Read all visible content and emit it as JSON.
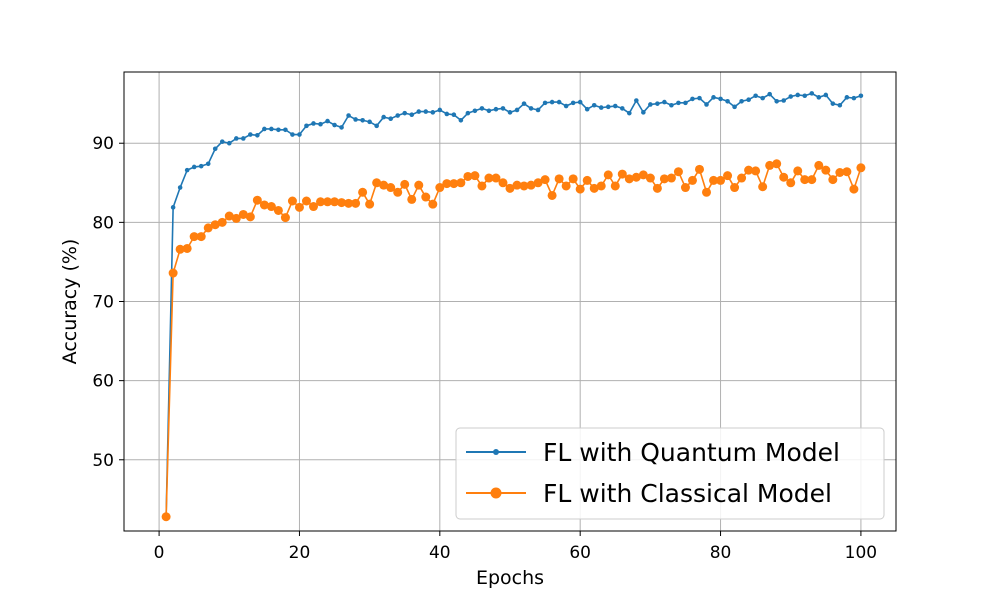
{
  "chart_data": {
    "type": "line",
    "xlabel": "Epochs",
    "ylabel": "Accuracy (%)",
    "xlim": [
      -5,
      105
    ],
    "ylim": [
      41,
      99
    ],
    "xticks": [
      0,
      20,
      40,
      60,
      80,
      100
    ],
    "yticks": [
      50,
      60,
      70,
      80,
      90
    ],
    "grid": true,
    "legend_position": "lower-right",
    "x": [
      1,
      2,
      3,
      4,
      5,
      6,
      7,
      8,
      9,
      10,
      11,
      12,
      13,
      14,
      15,
      16,
      17,
      18,
      19,
      20,
      21,
      22,
      23,
      24,
      25,
      26,
      27,
      28,
      29,
      30,
      31,
      32,
      33,
      34,
      35,
      36,
      37,
      38,
      39,
      40,
      41,
      42,
      43,
      44,
      45,
      46,
      47,
      48,
      49,
      50,
      51,
      52,
      53,
      54,
      55,
      56,
      57,
      58,
      59,
      60,
      61,
      62,
      63,
      64,
      65,
      66,
      67,
      68,
      69,
      70,
      71,
      72,
      73,
      74,
      75,
      76,
      77,
      78,
      79,
      80,
      81,
      82,
      83,
      84,
      85,
      86,
      87,
      88,
      89,
      90,
      91,
      92,
      93,
      94,
      95,
      96,
      97,
      98,
      99,
      100
    ],
    "series": [
      {
        "name": "FL with Quantum Model",
        "color": "#1f77b4",
        "marker": "small-dot",
        "values": [
          42.8,
          81.9,
          84.4,
          86.6,
          87.0,
          87.1,
          87.4,
          89.3,
          90.2,
          90.0,
          90.6,
          90.6,
          91.1,
          91.0,
          91.8,
          91.8,
          91.7,
          91.7,
          91.1,
          91.1,
          92.2,
          92.5,
          92.4,
          92.8,
          92.3,
          92.0,
          93.5,
          93.0,
          92.9,
          92.7,
          92.2,
          93.3,
          93.1,
          93.5,
          93.8,
          93.6,
          94.0,
          94.0,
          93.9,
          94.2,
          93.7,
          93.6,
          92.9,
          93.8,
          94.1,
          94.4,
          94.1,
          94.3,
          94.4,
          93.9,
          94.2,
          95.0,
          94.4,
          94.2,
          95.1,
          95.2,
          95.2,
          94.7,
          95.1,
          95.2,
          94.3,
          94.8,
          94.5,
          94.6,
          94.7,
          94.4,
          93.8,
          95.4,
          93.9,
          94.9,
          95.0,
          95.2,
          94.8,
          95.1,
          95.1,
          95.6,
          95.7,
          94.9,
          95.8,
          95.6,
          95.3,
          94.6,
          95.3,
          95.5,
          96.0,
          95.7,
          96.2,
          95.3,
          95.4,
          95.9,
          96.1,
          96.0,
          96.3,
          95.8,
          96.1,
          95.0,
          94.8,
          95.8,
          95.7,
          96.0
        ]
      },
      {
        "name": "FL with Classical Model",
        "color": "#ff7f0e",
        "marker": "dot",
        "values": [
          42.8,
          73.6,
          76.6,
          76.7,
          78.2,
          78.2,
          79.3,
          79.7,
          80.0,
          80.8,
          80.5,
          81.0,
          80.7,
          82.8,
          82.2,
          82.0,
          81.5,
          80.6,
          82.7,
          81.9,
          82.7,
          82.0,
          82.6,
          82.6,
          82.6,
          82.5,
          82.4,
          82.4,
          83.8,
          82.3,
          85.0,
          84.7,
          84.4,
          83.8,
          84.8,
          82.9,
          84.7,
          83.2,
          82.3,
          84.4,
          84.9,
          84.9,
          85.0,
          85.8,
          85.9,
          84.6,
          85.6,
          85.6,
          85.0,
          84.3,
          84.7,
          84.6,
          84.7,
          85.0,
          85.4,
          83.4,
          85.5,
          84.6,
          85.5,
          84.2,
          85.3,
          84.3,
          84.6,
          86.0,
          84.6,
          86.1,
          85.5,
          85.7,
          86.0,
          85.6,
          84.3,
          85.5,
          85.6,
          86.4,
          84.4,
          85.3,
          86.7,
          83.8,
          85.3,
          85.3,
          85.9,
          84.4,
          85.6,
          86.6,
          86.5,
          84.5,
          87.2,
          87.4,
          85.7,
          85.0,
          86.5,
          85.4,
          85.4,
          87.2,
          86.6,
          85.4,
          86.3,
          86.4,
          84.2,
          86.9
        ]
      }
    ]
  }
}
